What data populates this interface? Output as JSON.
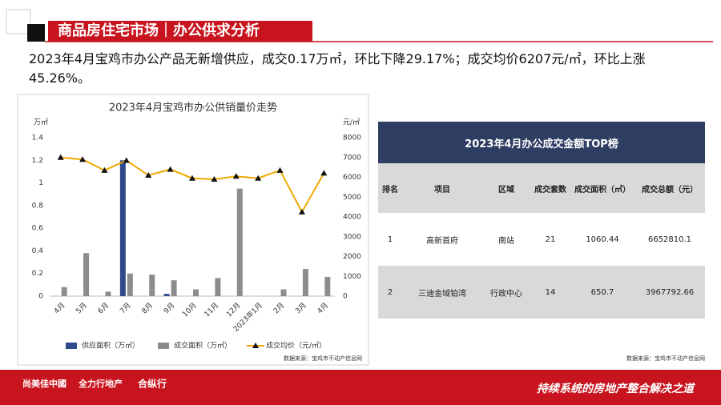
{
  "header": {
    "title": "商品房住宅市场｜办公供求分析"
  },
  "summary": "2023年4月宝鸡市办公产品无新增供应，成交0.17万㎡，环比下降29.17%；成交均价6207元/㎡，环比上涨45.26%。",
  "chart_data": {
    "type": "bar-line",
    "title": "2023年4月宝鸡市办公供销量价走势",
    "y_unit": "万㎡",
    "y2_unit": "元/㎡",
    "categories": [
      "4月",
      "5月",
      "6月",
      "7月",
      "8月",
      "9月",
      "10月",
      "11月",
      "12月",
      "2023年1月",
      "2月",
      "3月",
      "4月"
    ],
    "series": [
      {
        "name": "供应面积（万㎡）",
        "type": "bar",
        "color": "#2f4a8a",
        "values": [
          0,
          0,
          0,
          1.2,
          0,
          0.02,
          0,
          0,
          0,
          0,
          0,
          0,
          0
        ]
      },
      {
        "name": "成交面积（万㎡）",
        "type": "bar",
        "color": "#8c8c8c",
        "values": [
          0.08,
          0.38,
          0.04,
          0.2,
          0.19,
          0.14,
          0.06,
          0.16,
          0.95,
          0,
          0.06,
          0.24,
          0.17
        ]
      },
      {
        "name": "成交均价（元/㎡）",
        "type": "line",
        "axis": "y2",
        "color": "#f0a800",
        "values": [
          7000,
          6900,
          6350,
          6850,
          6100,
          6400,
          5950,
          5900,
          6050,
          5950,
          6350,
          4250,
          6207
        ]
      }
    ],
    "ylim": [
      0,
      1.4
    ],
    "yticks": [
      0,
      0.2,
      0.4,
      0.6,
      0.8,
      1,
      1.2,
      1.4
    ],
    "y2lim": [
      0,
      8000
    ],
    "y2ticks": [
      0,
      1000,
      2000,
      3000,
      4000,
      5000,
      6000,
      7000,
      8000
    ],
    "source": "数据来源：宝鸡市不动产信息网"
  },
  "table": {
    "title": "2023年4月办公成交金额TOP榜",
    "columns": [
      "排名",
      "项目",
      "区域",
      "成交套数",
      "成交面积（㎡）",
      "成交总额（元）"
    ],
    "rows": [
      [
        "1",
        "高新首府",
        "南站",
        "21",
        "1060.44",
        "6652810.1"
      ],
      [
        "2",
        "三迪金域铂湾",
        "行政中心",
        "14",
        "650.7",
        "3967792.66"
      ]
    ],
    "source": "数据来源：宝鸡市不动产信息网"
  },
  "footer": {
    "logos": [
      "尚美佳中國",
      "全力行地产",
      "合纵行"
    ],
    "slogan": "持续系统的房地产整合解决之道"
  }
}
